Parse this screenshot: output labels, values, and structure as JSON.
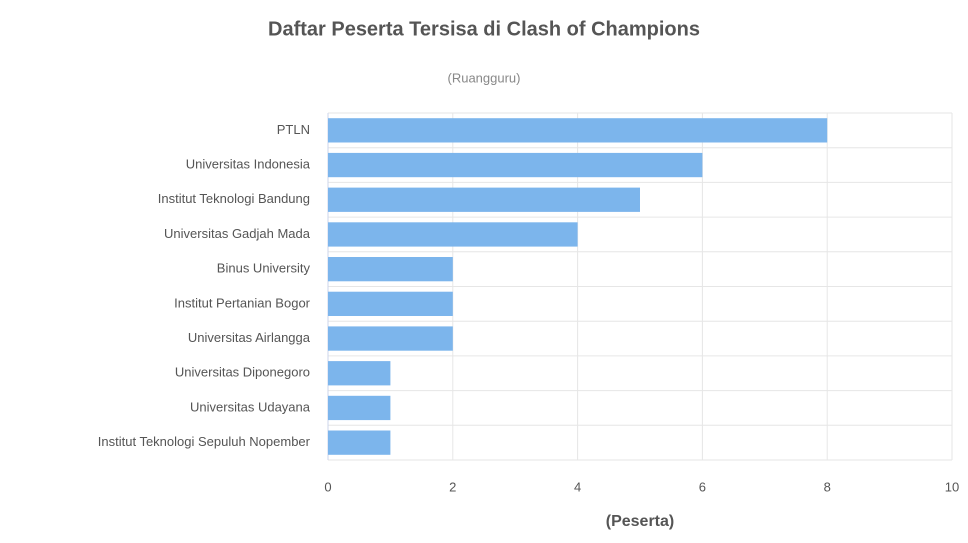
{
  "chart_data": {
    "type": "bar",
    "orientation": "horizontal",
    "title": "Daftar Peserta Tersisa di Clash of Champions",
    "subtitle": "(Ruangguru)",
    "x_label": "(Peserta)",
    "categories": [
      "PTLN",
      "Universitas Indonesia",
      "Institut Teknologi Bandung",
      "Universitas Gadjah Mada",
      "Binus University",
      "Institut Pertanian Bogor",
      "Universitas Airlangga",
      "Universitas Diponegoro",
      "Universitas Udayana",
      "Institut Teknologi Sepuluh Nopember"
    ],
    "values": [
      8,
      6,
      5,
      4,
      2,
      2,
      2,
      1,
      1,
      1
    ],
    "color": "#7cb5ec",
    "xlim": [
      0,
      10
    ],
    "xticks": [
      0,
      2,
      4,
      6,
      8,
      10
    ],
    "grid": true
  }
}
